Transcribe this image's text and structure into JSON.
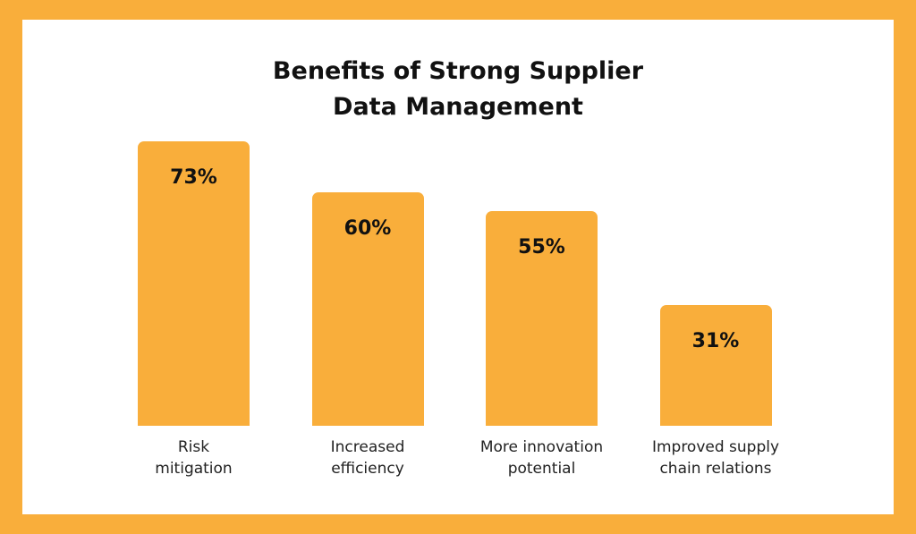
{
  "chart_data": {
    "type": "bar",
    "title": "Benefits of Strong Supplier\nData Management",
    "categories": [
      "Risk\nmitigation",
      "Increased\nefficiency",
      "More innovation\npotential",
      "Improved supply\nchain relations"
    ],
    "values": [
      73,
      60,
      55,
      31
    ],
    "value_labels": [
      "73%",
      "60%",
      "55%",
      "31%"
    ],
    "color": "#f9ae3b"
  }
}
